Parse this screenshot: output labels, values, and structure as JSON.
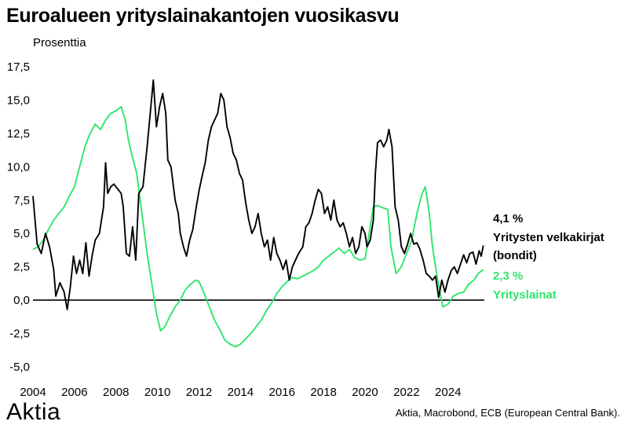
{
  "title": "Euroalueen yrityslainakantojen vuosikasvu",
  "y_unit": "Prosenttia",
  "logo": "Aktia",
  "source": "Aktia, Macrobond, ECB (European Central Bank).",
  "colors": {
    "bonds": "#000000",
    "loans": "#2ee66b",
    "zero_line": "#000000"
  },
  "labels": {
    "bonds_value": "4,1 %",
    "bonds_name_1": "Yritysten velkakirjat",
    "bonds_name_2": "(bondit)",
    "loans_value": "2,3 %",
    "loans_name": "Yrityslainat"
  },
  "chart_data": {
    "type": "line",
    "title": "Euroalueen yrityslainakantojen vuosikasvu",
    "ylabel": "Prosenttia",
    "xlim": [
      2004,
      2025.75
    ],
    "ylim": [
      -5,
      17.5
    ],
    "y_ticks": [
      17.5,
      15,
      12.5,
      10,
      7.5,
      5,
      2.5,
      0,
      -2.5,
      -5
    ],
    "y_tick_labels": [
      "17,5",
      "15,0",
      "12,5",
      "10,0",
      "7,5",
      "5,0",
      "2,5",
      "0,0",
      "-2,5",
      "-5,0"
    ],
    "x_ticks": [
      2004,
      2006,
      2008,
      2010,
      2012,
      2014,
      2016,
      2018,
      2020,
      2022,
      2024
    ],
    "x_tick_labels": [
      "2004",
      "2006",
      "2008",
      "2010",
      "2012",
      "2014",
      "2016",
      "2018",
      "2020",
      "2022",
      "2024"
    ],
    "grid": false,
    "series": [
      {
        "name": "Yritysten velkakirjat (bondit)",
        "color": "#000000",
        "points": [
          [
            2004.0,
            7.8
          ],
          [
            2004.2,
            4.2
          ],
          [
            2004.4,
            3.5
          ],
          [
            2004.6,
            5.0
          ],
          [
            2004.8,
            4.0
          ],
          [
            2005.0,
            2.3
          ],
          [
            2005.1,
            0.3
          ],
          [
            2005.3,
            1.3
          ],
          [
            2005.5,
            0.6
          ],
          [
            2005.65,
            -0.7
          ],
          [
            2005.8,
            1.0
          ],
          [
            2005.95,
            3.3
          ],
          [
            2006.1,
            2.0
          ],
          [
            2006.25,
            3.0
          ],
          [
            2006.4,
            2.0
          ],
          [
            2006.55,
            4.3
          ],
          [
            2006.7,
            1.8
          ],
          [
            2006.85,
            3.3
          ],
          [
            2007.0,
            4.5
          ],
          [
            2007.2,
            5.0
          ],
          [
            2007.4,
            7.0
          ],
          [
            2007.5,
            10.3
          ],
          [
            2007.6,
            8.0
          ],
          [
            2007.75,
            8.5
          ],
          [
            2007.9,
            8.7
          ],
          [
            2008.05,
            8.4
          ],
          [
            2008.25,
            8.0
          ],
          [
            2008.35,
            7.0
          ],
          [
            2008.5,
            3.5
          ],
          [
            2008.65,
            3.3
          ],
          [
            2008.8,
            5.5
          ],
          [
            2008.95,
            3.0
          ],
          [
            2009.1,
            8.0
          ],
          [
            2009.3,
            8.5
          ],
          [
            2009.5,
            11.5
          ],
          [
            2009.65,
            14.0
          ],
          [
            2009.8,
            16.5
          ],
          [
            2009.95,
            13.0
          ],
          [
            2010.1,
            14.5
          ],
          [
            2010.25,
            15.5
          ],
          [
            2010.4,
            14.0
          ],
          [
            2010.5,
            10.5
          ],
          [
            2010.65,
            10.0
          ],
          [
            2010.85,
            7.5
          ],
          [
            2011.0,
            6.5
          ],
          [
            2011.1,
            5.0
          ],
          [
            2011.25,
            4.0
          ],
          [
            2011.4,
            3.3
          ],
          [
            2011.55,
            4.5
          ],
          [
            2011.7,
            5.3
          ],
          [
            2011.85,
            6.8
          ],
          [
            2012.0,
            8.2
          ],
          [
            2012.15,
            9.3
          ],
          [
            2012.3,
            10.3
          ],
          [
            2012.45,
            12.0
          ],
          [
            2012.6,
            13.0
          ],
          [
            2012.75,
            13.5
          ],
          [
            2012.9,
            14.0
          ],
          [
            2013.05,
            15.5
          ],
          [
            2013.2,
            15.0
          ],
          [
            2013.35,
            13.0
          ],
          [
            2013.5,
            12.2
          ],
          [
            2013.65,
            11.0
          ],
          [
            2013.8,
            10.5
          ],
          [
            2013.95,
            9.5
          ],
          [
            2014.1,
            9.0
          ],
          [
            2014.25,
            7.3
          ],
          [
            2014.4,
            6.0
          ],
          [
            2014.55,
            5.0
          ],
          [
            2014.7,
            5.5
          ],
          [
            2014.85,
            6.5
          ],
          [
            2015.0,
            5.0
          ],
          [
            2015.15,
            4.0
          ],
          [
            2015.3,
            4.5
          ],
          [
            2015.45,
            3.0
          ],
          [
            2015.6,
            4.7
          ],
          [
            2015.75,
            3.5
          ],
          [
            2015.9,
            3.0
          ],
          [
            2016.05,
            2.3
          ],
          [
            2016.2,
            3.0
          ],
          [
            2016.35,
            1.5
          ],
          [
            2016.5,
            2.5
          ],
          [
            2016.65,
            3.0
          ],
          [
            2016.8,
            3.5
          ],
          [
            2017.0,
            4.0
          ],
          [
            2017.15,
            5.5
          ],
          [
            2017.3,
            5.8
          ],
          [
            2017.45,
            6.5
          ],
          [
            2017.6,
            7.5
          ],
          [
            2017.75,
            8.3
          ],
          [
            2017.9,
            8.0
          ],
          [
            2018.05,
            6.5
          ],
          [
            2018.2,
            7.0
          ],
          [
            2018.35,
            6.0
          ],
          [
            2018.5,
            7.5
          ],
          [
            2018.65,
            6.0
          ],
          [
            2018.8,
            5.5
          ],
          [
            2018.95,
            5.8
          ],
          [
            2019.1,
            5.0
          ],
          [
            2019.25,
            4.0
          ],
          [
            2019.4,
            4.7
          ],
          [
            2019.55,
            3.5
          ],
          [
            2019.7,
            4.0
          ],
          [
            2019.85,
            5.5
          ],
          [
            2020.0,
            5.0
          ],
          [
            2020.1,
            4.0
          ],
          [
            2020.25,
            4.5
          ],
          [
            2020.4,
            6.0
          ],
          [
            2020.5,
            9.5
          ],
          [
            2020.6,
            11.8
          ],
          [
            2020.75,
            12.0
          ],
          [
            2020.9,
            11.5
          ],
          [
            2021.05,
            12.0
          ],
          [
            2021.15,
            12.8
          ],
          [
            2021.3,
            11.5
          ],
          [
            2021.45,
            7.0
          ],
          [
            2021.6,
            6.0
          ],
          [
            2021.75,
            4.0
          ],
          [
            2021.9,
            3.5
          ],
          [
            2022.05,
            4.2
          ],
          [
            2022.2,
            5.0
          ],
          [
            2022.35,
            4.2
          ],
          [
            2022.5,
            4.3
          ],
          [
            2022.65,
            3.8
          ],
          [
            2022.8,
            3.0
          ],
          [
            2022.95,
            2.0
          ],
          [
            2023.1,
            1.8
          ],
          [
            2023.25,
            1.5
          ],
          [
            2023.4,
            1.8
          ],
          [
            2023.55,
            0.2
          ],
          [
            2023.7,
            1.5
          ],
          [
            2023.85,
            0.6
          ],
          [
            2024.0,
            1.5
          ],
          [
            2024.15,
            2.2
          ],
          [
            2024.3,
            2.5
          ],
          [
            2024.45,
            2.0
          ],
          [
            2024.6,
            2.7
          ],
          [
            2024.75,
            3.4
          ],
          [
            2024.9,
            2.8
          ],
          [
            2025.05,
            3.5
          ],
          [
            2025.2,
            3.6
          ],
          [
            2025.35,
            2.7
          ],
          [
            2025.5,
            3.7
          ],
          [
            2025.6,
            3.3
          ],
          [
            2025.7,
            4.1
          ]
        ]
      },
      {
        "name": "Yrityslainat",
        "color": "#2ee66b",
        "points": [
          [
            2004.0,
            3.8
          ],
          [
            2004.25,
            4.0
          ],
          [
            2004.5,
            4.5
          ],
          [
            2004.75,
            5.3
          ],
          [
            2005.0,
            6.0
          ],
          [
            2005.25,
            6.5
          ],
          [
            2005.5,
            7.0
          ],
          [
            2005.75,
            7.8
          ],
          [
            2006.0,
            8.5
          ],
          [
            2006.25,
            10.0
          ],
          [
            2006.5,
            11.5
          ],
          [
            2006.75,
            12.5
          ],
          [
            2007.0,
            13.2
          ],
          [
            2007.25,
            12.8
          ],
          [
            2007.5,
            13.5
          ],
          [
            2007.75,
            14.0
          ],
          [
            2008.0,
            14.2
          ],
          [
            2008.25,
            14.5
          ],
          [
            2008.45,
            13.5
          ],
          [
            2008.6,
            12.0
          ],
          [
            2008.75,
            11.0
          ],
          [
            2009.0,
            9.5
          ],
          [
            2009.25,
            6.5
          ],
          [
            2009.5,
            3.5
          ],
          [
            2009.75,
            1.0
          ],
          [
            2009.95,
            -1.0
          ],
          [
            2010.15,
            -2.3
          ],
          [
            2010.35,
            -2.0
          ],
          [
            2010.6,
            -1.2
          ],
          [
            2010.85,
            -0.5
          ],
          [
            2011.1,
            0.0
          ],
          [
            2011.35,
            0.8
          ],
          [
            2011.6,
            1.2
          ],
          [
            2011.85,
            1.5
          ],
          [
            2012.0,
            1.4
          ],
          [
            2012.25,
            0.5
          ],
          [
            2012.5,
            -0.5
          ],
          [
            2012.75,
            -1.5
          ],
          [
            2013.0,
            -2.2
          ],
          [
            2013.25,
            -3.0
          ],
          [
            2013.5,
            -3.3
          ],
          [
            2013.75,
            -3.5
          ],
          [
            2014.0,
            -3.3
          ],
          [
            2014.25,
            -2.9
          ],
          [
            2014.5,
            -2.5
          ],
          [
            2014.75,
            -2.0
          ],
          [
            2015.0,
            -1.5
          ],
          [
            2015.25,
            -0.8
          ],
          [
            2015.5,
            -0.2
          ],
          [
            2015.75,
            0.5
          ],
          [
            2016.0,
            1.0
          ],
          [
            2016.25,
            1.4
          ],
          [
            2016.5,
            1.7
          ],
          [
            2016.75,
            1.6
          ],
          [
            2017.0,
            1.8
          ],
          [
            2017.25,
            2.0
          ],
          [
            2017.5,
            2.2
          ],
          [
            2017.75,
            2.5
          ],
          [
            2018.0,
            3.0
          ],
          [
            2018.25,
            3.3
          ],
          [
            2018.5,
            3.6
          ],
          [
            2018.75,
            3.9
          ],
          [
            2019.0,
            3.5
          ],
          [
            2019.25,
            3.8
          ],
          [
            2019.5,
            3.2
          ],
          [
            2019.75,
            3.0
          ],
          [
            2020.0,
            3.1
          ],
          [
            2020.25,
            5.5
          ],
          [
            2020.4,
            7.0
          ],
          [
            2020.6,
            7.1
          ],
          [
            2020.9,
            6.9
          ],
          [
            2021.1,
            6.8
          ],
          [
            2021.25,
            4.0
          ],
          [
            2021.5,
            2.0
          ],
          [
            2021.75,
            2.5
          ],
          [
            2022.0,
            3.5
          ],
          [
            2022.25,
            4.5
          ],
          [
            2022.5,
            6.5
          ],
          [
            2022.75,
            8.0
          ],
          [
            2022.9,
            8.5
          ],
          [
            2023.1,
            6.5
          ],
          [
            2023.25,
            4.0
          ],
          [
            2023.5,
            1.5
          ],
          [
            2023.75,
            -0.5
          ],
          [
            2024.0,
            -0.3
          ],
          [
            2024.25,
            0.3
          ],
          [
            2024.5,
            0.5
          ],
          [
            2024.75,
            0.6
          ],
          [
            2025.0,
            1.2
          ],
          [
            2025.25,
            1.5
          ],
          [
            2025.45,
            2.0
          ],
          [
            2025.7,
            2.3
          ]
        ]
      }
    ]
  }
}
